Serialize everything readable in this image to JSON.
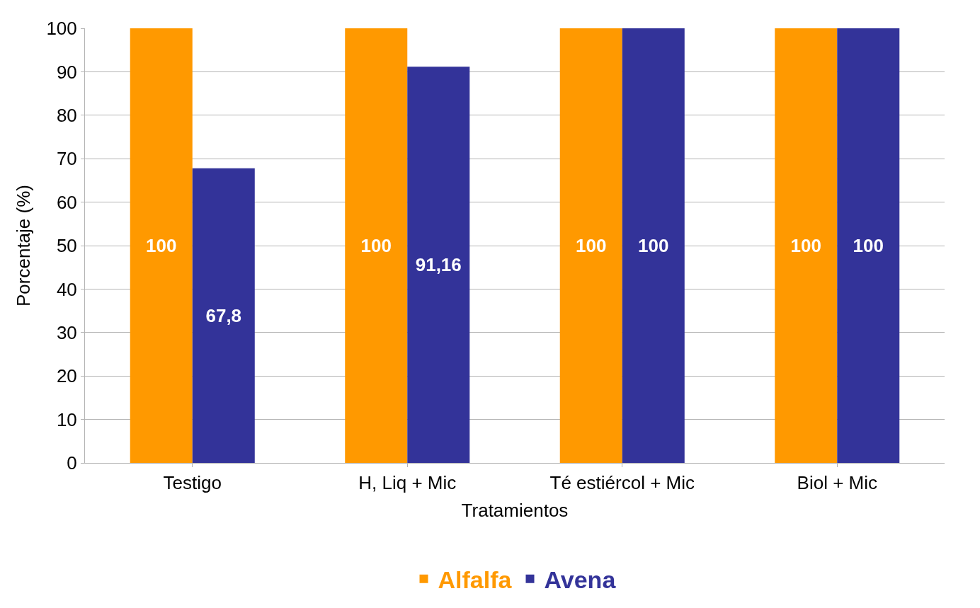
{
  "chart_data": {
    "type": "bar",
    "xlabel": "Tratamientos",
    "ylabel": "Porcentaje (%)",
    "categories": [
      "Testigo",
      "H, Liq + Mic",
      "Té estiércol + Mic",
      "Biol + Mic"
    ],
    "series": [
      {
        "name": "Alfalfa",
        "color": "#ff9900",
        "values": [
          100,
          100,
          100,
          100
        ],
        "value_labels": [
          "100",
          "100",
          "100",
          "100"
        ]
      },
      {
        "name": "Avena",
        "color": "#333399",
        "values": [
          67.8,
          91.16,
          100,
          100
        ],
        "value_labels": [
          "67,8",
          "91,16",
          "100",
          "100"
        ]
      }
    ],
    "ylim": [
      0,
      100
    ],
    "yticks": [
      0,
      10,
      20,
      30,
      40,
      50,
      60,
      70,
      80,
      90,
      100
    ],
    "grid": "y",
    "legend": "bottom"
  }
}
